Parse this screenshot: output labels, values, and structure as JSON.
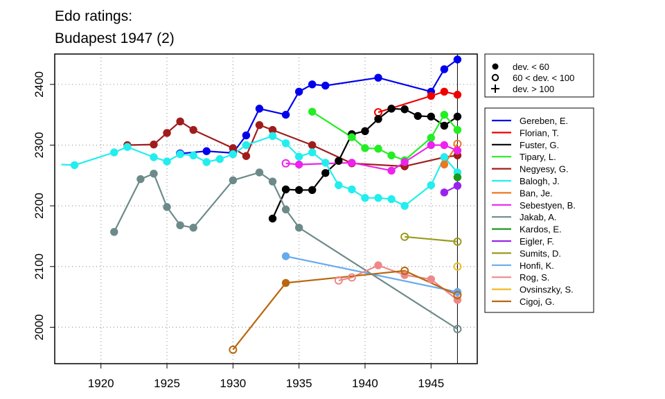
{
  "chart_data": {
    "type": "line",
    "title": "Edo ratings:",
    "subtitle": "Budapest 1947 (2)",
    "xlabel": "",
    "ylabel": "",
    "xlim": [
      1916.5,
      1948.5
    ],
    "ylim": [
      1940,
      2450
    ],
    "xticks": [
      1920,
      1925,
      1930,
      1935,
      1940,
      1945
    ],
    "yticks": [
      2000,
      2100,
      2200,
      2300,
      2400
    ],
    "grid": true,
    "event_line_x": 1947,
    "legend_placement": "right",
    "marker_legend": [
      {
        "symbol": "filled",
        "label": "dev. < 60"
      },
      {
        "symbol": "open",
        "label": "60 < dev. < 100"
      },
      {
        "symbol": "plus",
        "label": "dev. > 100"
      }
    ],
    "series": [
      {
        "name": "Gereben, E.",
        "color": "#0000ee",
        "points": [
          [
            1926,
            2286,
            "o"
          ],
          [
            1928,
            2290,
            "f"
          ],
          [
            1930,
            2287,
            "f"
          ],
          [
            1931,
            2316,
            "f"
          ],
          [
            1932,
            2360,
            "f"
          ],
          [
            1934,
            2350,
            "f"
          ],
          [
            1935,
            2388,
            "f"
          ],
          [
            1936,
            2400,
            "f"
          ],
          [
            1937,
            2398,
            "f"
          ],
          [
            1941,
            2411,
            "f"
          ],
          [
            1945,
            2388,
            "f"
          ],
          [
            1946,
            2425,
            "f"
          ],
          [
            1947,
            2441,
            "f"
          ]
        ]
      },
      {
        "name": "Florian, T.",
        "color": "#ee0000",
        "points": [
          [
            1941,
            2354,
            "o"
          ],
          [
            1945,
            2381,
            "f"
          ],
          [
            1946,
            2388,
            "f"
          ],
          [
            1947,
            2383,
            "f"
          ]
        ]
      },
      {
        "name": "Fuster, G.",
        "color": "#000000",
        "points": [
          [
            1933,
            2179,
            "f"
          ],
          [
            1934,
            2227,
            "f"
          ],
          [
            1935,
            2226,
            "f"
          ],
          [
            1936,
            2226,
            "f"
          ],
          [
            1937,
            2254,
            "f"
          ],
          [
            1938,
            2274,
            "f"
          ],
          [
            1939,
            2318,
            "f"
          ],
          [
            1940,
            2323,
            "f"
          ],
          [
            1941,
            2343,
            "f"
          ],
          [
            1942,
            2360,
            "f"
          ],
          [
            1943,
            2359,
            "f"
          ],
          [
            1944,
            2348,
            "f"
          ],
          [
            1945,
            2347,
            "f"
          ],
          [
            1946,
            2332,
            "f"
          ],
          [
            1947,
            2347,
            "f"
          ]
        ]
      },
      {
        "name": "Tipary, L.",
        "color": "#22ee22",
        "points": [
          [
            1936,
            2355,
            "f"
          ],
          [
            1939,
            2313,
            "f"
          ],
          [
            1940,
            2295,
            "f"
          ],
          [
            1941,
            2294,
            "f"
          ],
          [
            1942,
            2283,
            "f"
          ],
          [
            1943,
            2275,
            "f"
          ],
          [
            1945,
            2312,
            "f"
          ],
          [
            1946,
            2350,
            "f"
          ],
          [
            1947,
            2325,
            "f"
          ]
        ]
      },
      {
        "name": "Negyesy, G.",
        "color": "#a01c1c",
        "points": [
          [
            1922,
            2300,
            "f"
          ],
          [
            1924,
            2301,
            "f"
          ],
          [
            1925,
            2320,
            "f"
          ],
          [
            1926,
            2339,
            "f"
          ],
          [
            1927,
            2325,
            "f"
          ],
          [
            1930,
            2295,
            "f"
          ],
          [
            1931,
            2282,
            "f"
          ],
          [
            1932,
            2333,
            "f"
          ],
          [
            1933,
            2325,
            "f"
          ],
          [
            1936,
            2300,
            "f"
          ],
          [
            1939,
            2270,
            "f"
          ],
          [
            1943,
            2265,
            "f"
          ],
          [
            1946,
            2280,
            "f"
          ],
          [
            1947,
            2283,
            "f"
          ]
        ]
      },
      {
        "name": "Balogh, J.",
        "color": "#22eeee",
        "points": [
          [
            1917,
            2268,
            "n"
          ],
          [
            1918,
            2267,
            "f"
          ],
          [
            1921,
            2288,
            "f"
          ],
          [
            1922,
            2297,
            "f"
          ],
          [
            1924,
            2280,
            "f"
          ],
          [
            1925,
            2273,
            "f"
          ],
          [
            1926,
            2285,
            "f"
          ],
          [
            1927,
            2283,
            "f"
          ],
          [
            1928,
            2272,
            "f"
          ],
          [
            1929,
            2277,
            "f"
          ],
          [
            1930,
            2285,
            "f"
          ],
          [
            1931,
            2300,
            "f"
          ],
          [
            1933,
            2315,
            "f"
          ],
          [
            1934,
            2303,
            "f"
          ],
          [
            1935,
            2281,
            "f"
          ],
          [
            1936,
            2288,
            "f"
          ],
          [
            1937,
            2271,
            "f"
          ],
          [
            1938,
            2234,
            "f"
          ],
          [
            1939,
            2227,
            "f"
          ],
          [
            1940,
            2213,
            "f"
          ],
          [
            1941,
            2213,
            "f"
          ],
          [
            1942,
            2211,
            "f"
          ],
          [
            1943,
            2200,
            "f"
          ],
          [
            1945,
            2234,
            "f"
          ],
          [
            1946,
            2280,
            "f"
          ],
          [
            1947,
            2255,
            "f"
          ]
        ]
      },
      {
        "name": "Ban, Je.",
        "color": "#ee7722",
        "points": [
          [
            1946,
            2268,
            "f"
          ],
          [
            1947,
            2302,
            "o"
          ]
        ]
      },
      {
        "name": "Sebestyen, B.",
        "color": "#ee22ee",
        "points": [
          [
            1934,
            2270,
            "o"
          ],
          [
            1935,
            2268,
            "f"
          ],
          [
            1939,
            2271,
            "f"
          ],
          [
            1942,
            2258,
            "f"
          ],
          [
            1943,
            2272,
            "f"
          ],
          [
            1945,
            2300,
            "f"
          ],
          [
            1946,
            2300,
            "f"
          ],
          [
            1947,
            2291,
            "f"
          ]
        ]
      },
      {
        "name": "Jakab, A.",
        "color": "#6d8a8a",
        "points": [
          [
            1921,
            2157,
            "f"
          ],
          [
            1923,
            2244,
            "f"
          ],
          [
            1924,
            2253,
            "f"
          ],
          [
            1925,
            2198,
            "f"
          ],
          [
            1926,
            2168,
            "f"
          ],
          [
            1927,
            2164,
            "f"
          ],
          [
            1930,
            2242,
            "f"
          ],
          [
            1932,
            2255,
            "f"
          ],
          [
            1933,
            2240,
            "f"
          ],
          [
            1934,
            2194,
            "f"
          ],
          [
            1935,
            2164,
            "f"
          ],
          [
            1947,
            1997,
            "o"
          ]
        ]
      },
      {
        "name": "Kardos, E.",
        "color": "#1a9a1a",
        "points": [
          [
            1947,
            2247,
            "f"
          ]
        ]
      },
      {
        "name": "Eigler, F.",
        "color": "#9a22ee",
        "points": [
          [
            1946,
            2222,
            "f"
          ],
          [
            1947,
            2233,
            "f"
          ]
        ]
      },
      {
        "name": "Sumits, D.",
        "color": "#9a9a1c",
        "points": [
          [
            1943,
            2149,
            "o"
          ],
          [
            1947,
            2141,
            "o"
          ]
        ]
      },
      {
        "name": "Honfi, K.",
        "color": "#66aaee",
        "points": [
          [
            1934,
            2117,
            "f"
          ],
          [
            1947,
            2058,
            "f"
          ]
        ]
      },
      {
        "name": "Rog, S.",
        "color": "#ee8888",
        "points": [
          [
            1938,
            2077,
            "o"
          ],
          [
            1939,
            2082,
            "o"
          ],
          [
            1941,
            2102,
            "f"
          ],
          [
            1943,
            2086,
            "f"
          ],
          [
            1945,
            2079,
            "f"
          ],
          [
            1947,
            2045,
            "f"
          ]
        ]
      },
      {
        "name": "Ovsinszky, S.",
        "color": "#eebb22",
        "points": [
          [
            1947,
            2100,
            "o"
          ]
        ]
      },
      {
        "name": "Cigoj, G.",
        "color": "#b8660e",
        "points": [
          [
            1930,
            1963,
            "o"
          ],
          [
            1934,
            2073,
            "f"
          ],
          [
            1943,
            2093,
            "o"
          ],
          [
            1947,
            2053,
            "o"
          ]
        ]
      }
    ]
  }
}
